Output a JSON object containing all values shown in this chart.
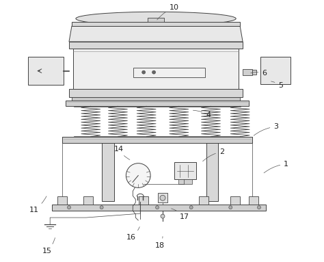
{
  "bg_color": "#ffffff",
  "lc": "#404040",
  "fc_light": "#ececec",
  "fc_mid": "#d8d8d8",
  "fc_dark": "#c0c0c0",
  "label_fs": 8,
  "label_color": "#222222"
}
